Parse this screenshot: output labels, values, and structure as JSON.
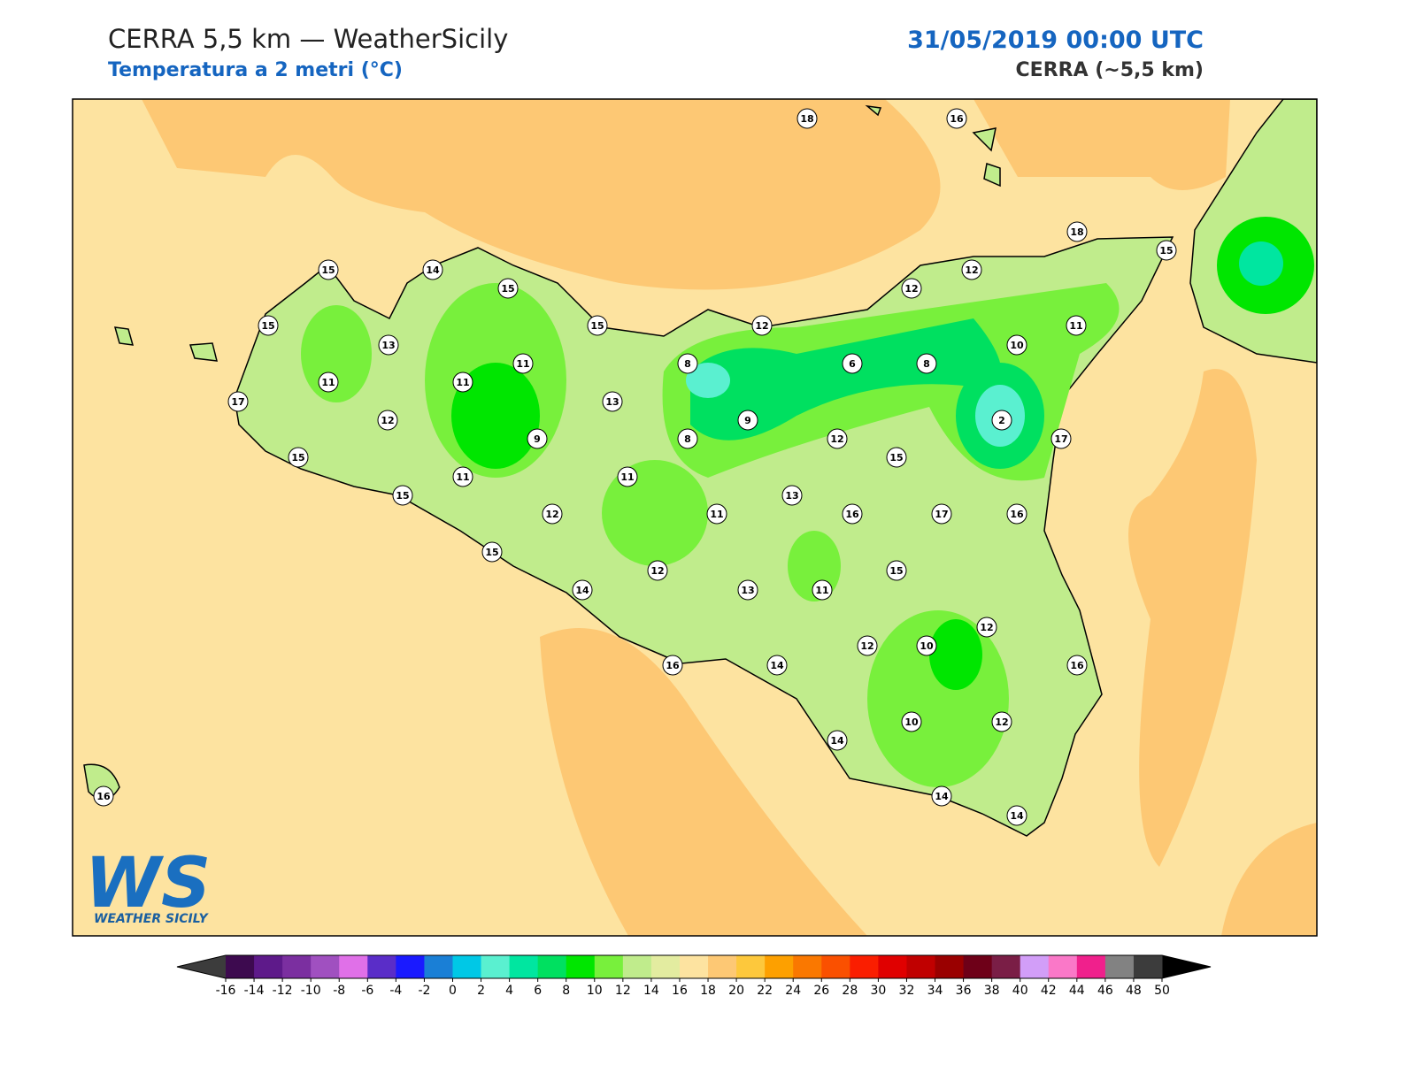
{
  "header": {
    "title": "CERRA 5,5 km — WeatherSicily",
    "subtitle": "Temperatura a 2 metri (°C)",
    "date": "31/05/2019 00:00 UTC",
    "model": "CERRA (~5,5 km)"
  },
  "map": {
    "stations": [
      18,
      16,
      15,
      14,
      15,
      15,
      13,
      11,
      15,
      12,
      12,
      12,
      18,
      15,
      11,
      10,
      8,
      6,
      8,
      11,
      11,
      17,
      13,
      9,
      2,
      12,
      9,
      8,
      12,
      17,
      15,
      15,
      11,
      11,
      13,
      15,
      12,
      11,
      16,
      17,
      16,
      15,
      12,
      15,
      14,
      13,
      11,
      12,
      10,
      12,
      16,
      14,
      16,
      10,
      12,
      14,
      14,
      14,
      16
    ]
  },
  "logo": {
    "mark": "WS",
    "name": "WEATHER SICILY"
  },
  "colorbar": {
    "ticks": [
      -16,
      -14,
      -12,
      -10,
      -8,
      -6,
      -4,
      -2,
      0,
      2,
      4,
      6,
      8,
      10,
      12,
      14,
      16,
      18,
      20,
      22,
      24,
      26,
      28,
      30,
      32,
      34,
      36,
      38,
      40,
      42,
      44,
      46,
      48,
      50
    ],
    "colors": [
      "#3d0a4f",
      "#5e1a8a",
      "#7b2fa0",
      "#a050c0",
      "#e070e8",
      "#5a2dc8",
      "#1a1aff",
      "#1a7fd6",
      "#00c8e6",
      "#5af0d0",
      "#00e6a0",
      "#00e060",
      "#00e600",
      "#78f03c",
      "#c0ec8c",
      "#e3eca0",
      "#fde3a0",
      "#fdc874",
      "#fdc83c",
      "#fda000",
      "#fa7800",
      "#fa5000",
      "#fa1e00",
      "#e00000",
      "#c00000",
      "#9a0000",
      "#6e0018",
      "#7a1e46",
      "#d29ef8",
      "#fa78c8",
      "#f0208c",
      "#828282",
      "#3c3c3c"
    ],
    "under": "#3c3c3c",
    "over": "#000000"
  }
}
